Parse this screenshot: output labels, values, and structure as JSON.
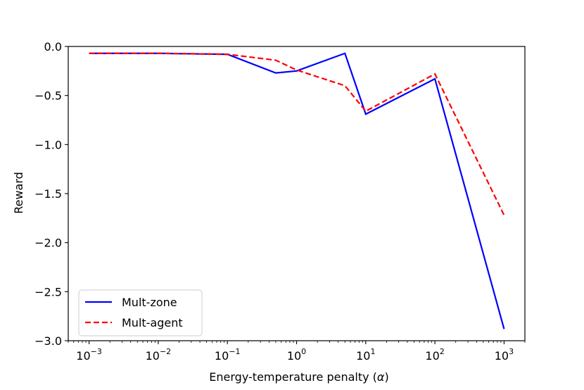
{
  "chart_data": {
    "type": "line",
    "xlabel_text": "Energy-temperature penalty (",
    "xlabel_symbol": "α",
    "xlabel_close": ")",
    "ylabel": "Reward",
    "xscale": "log",
    "xlim": [
      0.0005,
      2000
    ],
    "ylim": [
      -3.0,
      0.0
    ],
    "grid": false,
    "legend_position": "lower-left",
    "x_ticks": [
      {
        "value": 0.001,
        "base": "10",
        "exp": "−3"
      },
      {
        "value": 0.01,
        "base": "10",
        "exp": "−2"
      },
      {
        "value": 0.1,
        "base": "10",
        "exp": "−1"
      },
      {
        "value": 1,
        "base": "10",
        "exp": "0"
      },
      {
        "value": 10,
        "base": "10",
        "exp": "1"
      },
      {
        "value": 100,
        "base": "10",
        "exp": "2"
      },
      {
        "value": 1000,
        "base": "10",
        "exp": "3"
      }
    ],
    "y_ticks": [
      {
        "value": 0.0,
        "label": "0.0"
      },
      {
        "value": -0.5,
        "label": "−0.5"
      },
      {
        "value": -1.0,
        "label": "−1.0"
      },
      {
        "value": -1.5,
        "label": "−1.5"
      },
      {
        "value": -2.0,
        "label": "−2.0"
      },
      {
        "value": -2.5,
        "label": "−2.5"
      },
      {
        "value": -3.0,
        "label": "−3.0"
      }
    ],
    "series": [
      {
        "name": "Mult-zone",
        "color": "#0000ff",
        "style": "solid",
        "x": [
          0.001,
          0.01,
          0.1,
          0.5,
          1,
          5,
          10,
          100,
          1000
        ],
        "y": [
          -0.07,
          -0.07,
          -0.08,
          -0.27,
          -0.25,
          -0.07,
          -0.69,
          -0.33,
          -2.88
        ]
      },
      {
        "name": "Mult-agent",
        "color": "#ff0000",
        "style": "dashed",
        "x": [
          0.001,
          0.01,
          0.1,
          0.5,
          1,
          5,
          10,
          100,
          1000
        ],
        "y": [
          -0.07,
          -0.07,
          -0.08,
          -0.14,
          -0.24,
          -0.4,
          -0.66,
          -0.28,
          -1.72
        ]
      }
    ]
  }
}
